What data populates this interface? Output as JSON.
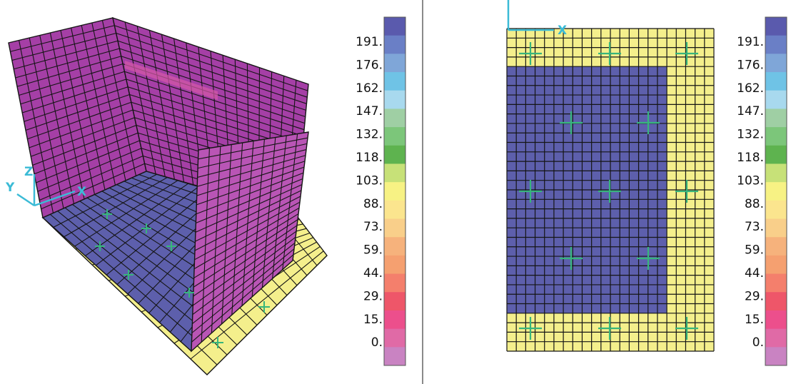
{
  "colors": {
    "mesh_line": "#151515",
    "wall": "#a53fa6",
    "wall_light": "#b955b5",
    "floor_blue": "#5d5fac",
    "yellow": "#f4ef8c",
    "marker": "#37b57c",
    "axis": "#3bbbd6"
  },
  "axes_3d": {
    "x": "X",
    "y": "Y",
    "z": "Z"
  },
  "axes_2d": {
    "x": "X"
  },
  "color_scale": {
    "labels": [
      "191.",
      "176.",
      "162.",
      "147.",
      "132.",
      "118.",
      "103.",
      "88.",
      "73.",
      "59.",
      "44.",
      "29.",
      "15.",
      "0."
    ],
    "swatch_colors": [
      "#5a5aad",
      "#6a7fc6",
      "#7fa6d8",
      "#6fc3e6",
      "#a8d9ee",
      "#9fcfa4",
      "#7cc67a",
      "#5eb34f",
      "#c7e178",
      "#f7f284",
      "#fbe58e",
      "#f9cf8a",
      "#f6b27c",
      "#f5a070",
      "#f47f6c",
      "#ee5669",
      "#ec4f8c",
      "#e06aa6",
      "#c983c2"
    ]
  }
}
